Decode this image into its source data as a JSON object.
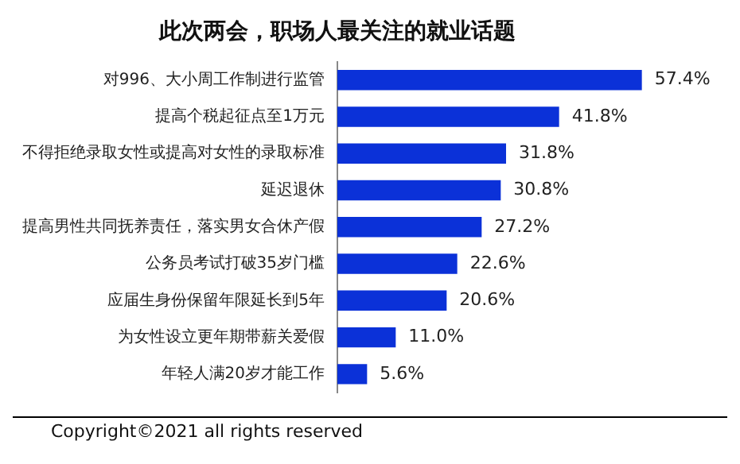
{
  "chart_data": {
    "type": "bar",
    "orientation": "horizontal",
    "title": "此次两会，职场人最关注的就业话题",
    "categories": [
      "对996、大小周工作制进行监管",
      "提高个税起征点至1万元",
      "不得拒绝录取女性或提高对女性的录取标准",
      "延迟退休",
      "提高男性共同抚养责任，落实男女合休产假",
      "公务员考试打破35岁门槛",
      "应届生身份保留年限延长到5年",
      "为女性设立更年期带薪关爱假",
      "年轻人满20岁才能工作"
    ],
    "values": [
      57.4,
      41.8,
      31.8,
      30.8,
      27.2,
      22.6,
      20.6,
      11.0,
      5.6
    ],
    "value_labels": [
      "57.4%",
      "41.8%",
      "31.8%",
      "30.8%",
      "27.2%",
      "22.6%",
      "20.6%",
      "11.0%",
      "5.6%"
    ],
    "color": "#0b31d8",
    "tick_labels": "y",
    "legend": false,
    "annotations": [
      "Copyright©2021 all rights reserved"
    ]
  }
}
